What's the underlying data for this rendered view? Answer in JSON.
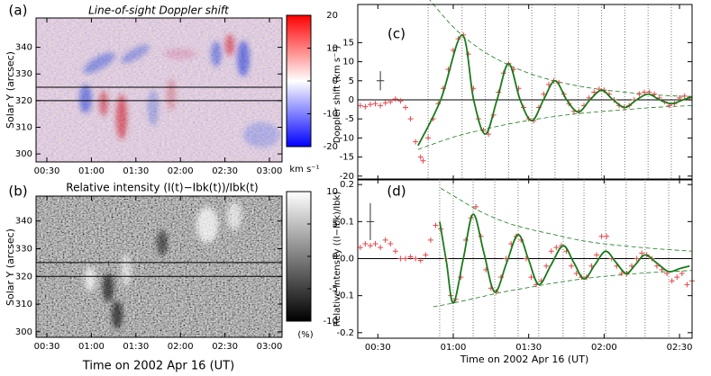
{
  "chart_data": [
    {
      "type": "heatmap",
      "panel_label": "(a)",
      "title": "Line-of-sight Doppler shift",
      "y_label": "Solar Y (arcsec)",
      "xlim": [
        22.7,
        188.5
      ],
      "xticks": [
        {
          "value": 30,
          "label": "00:30"
        },
        {
          "value": 60,
          "label": "01:00"
        },
        {
          "value": 90,
          "label": "01:30"
        },
        {
          "value": 120,
          "label": "02:00"
        },
        {
          "value": 150,
          "label": "02:30"
        },
        {
          "value": 180,
          "label": "03:00"
        }
      ],
      "ylim": [
        297,
        351
      ],
      "yticks": [
        300,
        310,
        320,
        330,
        340
      ],
      "hlines": [
        320,
        325
      ],
      "colorbar": {
        "lim": [
          -20,
          20
        ],
        "ticks": [
          -20,
          -10,
          0,
          10,
          20
        ],
        "label": "km s⁻¹",
        "colors": [
          "#0000ff",
          "#ffffff",
          "#ff0000"
        ]
      }
    },
    {
      "type": "heatmap",
      "panel_label": "(b)",
      "title": "Relative intensity (I(t)−Ibk(t))/Ibk(t)",
      "y_label": "Solar Y (arcsec)",
      "x_label": "Time on 2002 Apr 16 (UT)",
      "xlim": [
        22.7,
        188.5
      ],
      "xticks": [
        {
          "value": 30,
          "label": "00:30"
        },
        {
          "value": 60,
          "label": "01:00"
        },
        {
          "value": 90,
          "label": "01:30"
        },
        {
          "value": 120,
          "label": "02:00"
        },
        {
          "value": 150,
          "label": "02:30"
        },
        {
          "value": 180,
          "label": "03:00"
        }
      ],
      "ylim": [
        298,
        349
      ],
      "yticks": [
        300,
        310,
        320,
        330,
        340
      ],
      "hlines": [
        320,
        325
      ],
      "colorbar": {
        "lim": [
          -10,
          10
        ],
        "ticks": [
          -10,
          -5,
          0,
          5,
          10
        ],
        "label": "(%)",
        "colors": [
          "#000000",
          "#ffffff"
        ]
      }
    },
    {
      "type": "scatter",
      "panel_label": "(c)",
      "y_label": "Doppler shift (km s⁻¹)",
      "xlim": [
        22,
        155
      ],
      "xticks": [
        30,
        60,
        90,
        120,
        150
      ],
      "ylim": [
        -21,
        25
      ],
      "yticks": [
        -20,
        -15,
        -10,
        -5,
        0,
        5,
        10,
        15
      ],
      "hlines": [
        0
      ],
      "color": "#e8444a",
      "x": [
        23,
        25,
        27,
        29,
        31,
        33,
        35,
        37,
        39,
        41,
        43,
        45,
        47,
        48,
        50,
        52,
        54,
        56,
        58,
        60,
        62,
        64,
        66,
        68,
        70,
        72,
        74,
        76,
        78,
        80,
        82,
        84,
        86,
        88,
        90,
        92,
        94,
        96,
        98,
        100,
        102,
        104,
        106,
        108,
        110,
        112,
        114,
        116,
        118,
        120,
        122,
        124,
        126,
        128,
        130,
        132,
        134,
        136,
        138,
        140,
        142,
        144,
        146,
        148,
        150,
        152,
        154
      ],
      "values": [
        -1.5,
        -1.8,
        -1.2,
        -1.0,
        -1.5,
        -0.8,
        -0.5,
        0.2,
        -0.3,
        -2,
        -5,
        -11,
        -15,
        -16,
        -10,
        -5,
        -1,
        3,
        8,
        13,
        16,
        17,
        12,
        3,
        -5,
        -8,
        -9,
        -4,
        2,
        7,
        9.5,
        8,
        3,
        -2,
        -5,
        -5.5,
        -2,
        1.5,
        4,
        5,
        4.5,
        1.5,
        -1,
        -3,
        -3,
        -1.5,
        0.5,
        2,
        2.8,
        2.5,
        1.5,
        0,
        -1.5,
        -2,
        -1.5,
        0,
        1.5,
        2,
        2,
        1.5,
        0.5,
        -0.5,
        -1.5,
        -1,
        0.5,
        1,
        0.5
      ],
      "fit": {
        "color": "#1a7a1a",
        "x": [
          46,
          55,
          63.5,
          68.1,
          72.75,
          77.4,
          82,
          86.6,
          91.25,
          95.9,
          100.5,
          105.1,
          109.75,
          114.4,
          119,
          123.6,
          128.25,
          132.9,
          137.5,
          142.1,
          146.75,
          151.4,
          155
        ],
        "values": [
          -12,
          0,
          17,
          0,
          -9,
          0,
          9.5,
          0,
          -5.5,
          0,
          5,
          0,
          -3.2,
          0,
          2.5,
          0,
          -2,
          0,
          1.5,
          0,
          -1,
          0,
          0.8
        ]
      },
      "envelope_upper": {
        "x": [
          50,
          60,
          70,
          80,
          90,
          100,
          110,
          120,
          130,
          140,
          155
        ],
        "values": [
          26.7,
          19.1,
          13.6,
          9.8,
          7.0,
          5.0,
          3.6,
          2.6,
          1.9,
          1.3,
          0.8
        ]
      },
      "envelope_lower": {
        "x": [
          46,
          60,
          70,
          80,
          90,
          100,
          110,
          120,
          130,
          140,
          155
        ],
        "values": [
          -13,
          -9.8,
          -8.1,
          -6.6,
          -5.4,
          -4.4,
          -3.6,
          -3.0,
          -2.5,
          -2.0,
          -1.5
        ]
      },
      "vlines": [
        50,
        63.5,
        72.75,
        82,
        91.25,
        100.5,
        109.75,
        119,
        128.25,
        137.5,
        146.75
      ],
      "error_bar": {
        "x": 31,
        "y": 5,
        "xerr": 1.5,
        "yerr": 2.5
      }
    },
    {
      "type": "scatter",
      "panel_label": "(d)",
      "y_label": "Relative intensity ((I−Ibk)/Ibk)",
      "x_label": "Time on 2002 Apr 16 (UT)",
      "xlim": [
        22,
        155
      ],
      "xticks": [
        {
          "value": 30,
          "label": "00:30"
        },
        {
          "value": 60,
          "label": "01:00"
        },
        {
          "value": 90,
          "label": "01:30"
        },
        {
          "value": 120,
          "label": "02:00"
        },
        {
          "value": 150,
          "label": "02:30"
        }
      ],
      "ylim": [
        -0.215,
        0.215
      ],
      "yticks": [
        -0.2,
        -0.1,
        {
          "value": 0,
          "label": "0.0"
        },
        0.1,
        0.2
      ],
      "hlines": [
        0
      ],
      "color": "#e8444a",
      "x": [
        23,
        25,
        27,
        29,
        31,
        33,
        35,
        37,
        39,
        41,
        43,
        45,
        47,
        49,
        51,
        53,
        55,
        57,
        59,
        61,
        63,
        65,
        67,
        69,
        71,
        73,
        75,
        77,
        79,
        81,
        83,
        85,
        87,
        89,
        91,
        93,
        95,
        97,
        99,
        101,
        103,
        105,
        107,
        109,
        111,
        113,
        115,
        117,
        119,
        121,
        123,
        125,
        127,
        129,
        131,
        133,
        135,
        137,
        139,
        141,
        143,
        145,
        147,
        149,
        151,
        153,
        155
      ],
      "values": [
        0.03,
        0.04,
        0.035,
        0.04,
        0.03,
        0.05,
        0.04,
        0.02,
        0.0,
        0.0,
        0.005,
        0.0,
        -0.005,
        0.01,
        0.05,
        0.09,
        0.08,
        0.0,
        -0.1,
        -0.11,
        -0.05,
        0.05,
        0.11,
        0.14,
        0.06,
        -0.03,
        -0.08,
        -0.09,
        -0.05,
        0.0,
        0.04,
        0.06,
        0.05,
        0.0,
        -0.05,
        -0.07,
        -0.06,
        -0.02,
        0.02,
        0.03,
        0.035,
        0.02,
        -0.02,
        -0.04,
        -0.05,
        -0.05,
        -0.02,
        0.01,
        0.06,
        0.06,
        0.0,
        -0.02,
        -0.04,
        -0.04,
        -0.02,
        0.0,
        0.015,
        0.01,
        0.0,
        -0.02,
        -0.03,
        -0.04,
        -0.06,
        -0.05,
        -0.04,
        -0.07,
        -0.06
      ],
      "fit": {
        "color": "#1a7a1a",
        "x": [
          54.6,
          57.3,
          60,
          64,
          67.9,
          72.2,
          76.5,
          81.2,
          85.8,
          89.9,
          94,
          98.9,
          103.7,
          107.9,
          112,
          116.3,
          120.6,
          124.7,
          128.8,
          132.6,
          136.3,
          141,
          145.7,
          150,
          154
        ],
        "values": [
          0.1,
          -0.01,
          -0.12,
          0,
          0.12,
          0.015,
          -0.09,
          -0.012,
          0.065,
          -0.002,
          -0.07,
          -0.017,
          0.035,
          -0.01,
          -0.055,
          -0.017,
          0.02,
          -0.01,
          -0.04,
          -0.015,
          0.01,
          -0.012,
          -0.035,
          -0.027,
          -0.02
        ]
      },
      "envelope_upper": {
        "x": [
          55,
          60,
          70,
          80,
          90,
          100,
          110,
          120,
          130,
          140,
          155
        ],
        "values": [
          0.19,
          0.17,
          0.13,
          0.1,
          0.08,
          0.065,
          0.05,
          0.04,
          0.033,
          0.027,
          0.02
        ]
      },
      "envelope_lower": {
        "x": [
          52,
          60,
          70,
          80,
          90,
          100,
          110,
          120,
          130,
          140,
          155
        ],
        "values": [
          -0.13,
          -0.12,
          -0.105,
          -0.09,
          -0.078,
          -0.066,
          -0.056,
          -0.048,
          -0.042,
          -0.037,
          -0.032
        ]
      },
      "vlines": [
        54.6,
        60,
        67.9,
        76.5,
        85.8,
        94,
        103.7,
        112,
        120.6,
        128.8,
        136.3,
        145.7
      ],
      "error_bar": {
        "x": 27,
        "y": 0.1,
        "xerr": 1.5,
        "yerr": 0.05
      }
    }
  ]
}
